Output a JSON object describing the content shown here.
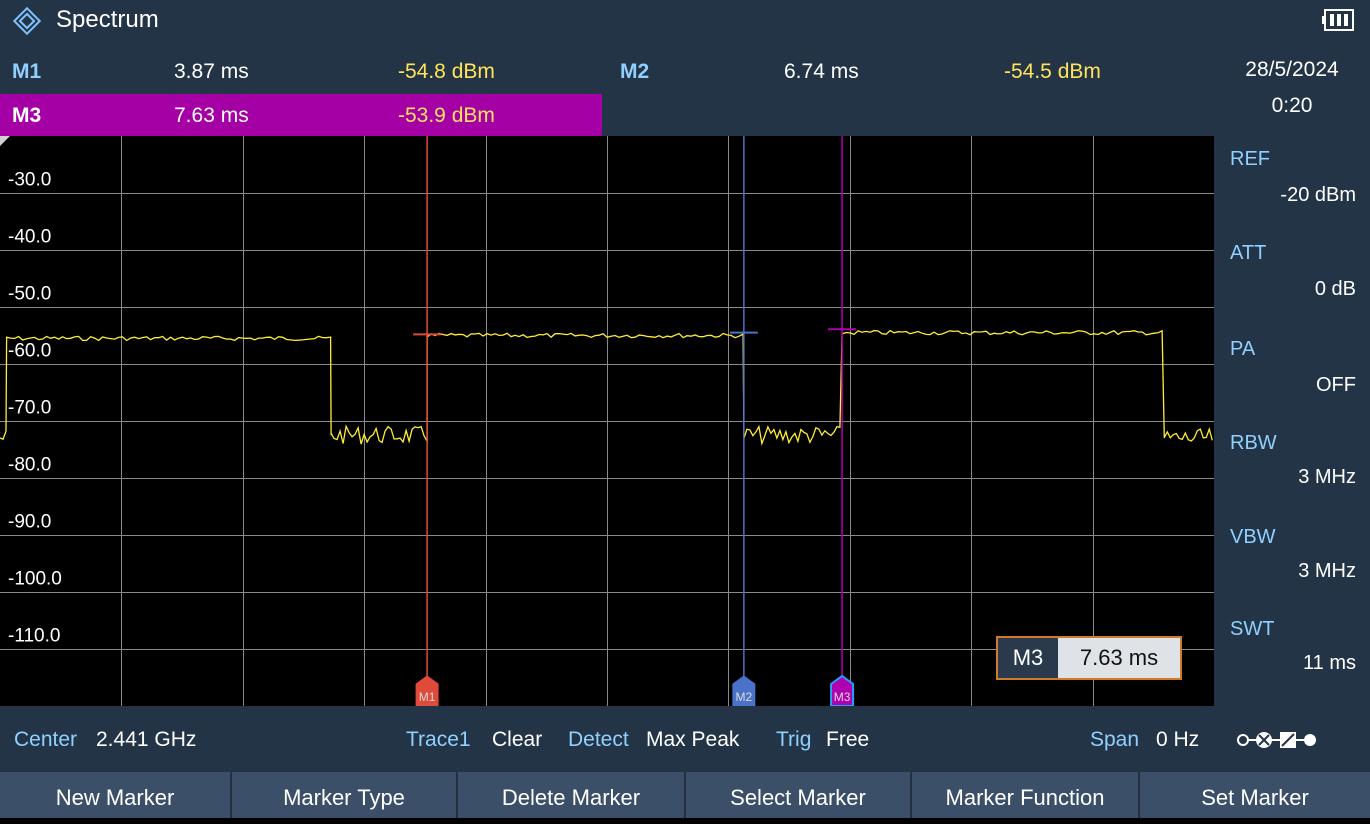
{
  "app": {
    "title": "Spectrum"
  },
  "markers": {
    "m1": {
      "name": "M1",
      "x": "3.87 ms",
      "y": "-54.8 dBm"
    },
    "m2": {
      "name": "M2",
      "x": "6.74 ms",
      "y": "-54.5 dBm"
    },
    "m3": {
      "name": "M3",
      "x": "7.63 ms",
      "y": "-53.9 dBm"
    }
  },
  "datetime": {
    "date": "28/5/2024",
    "time": "0:20"
  },
  "settings": [
    {
      "label": "REF",
      "value": "-20 dBm"
    },
    {
      "label": "ATT",
      "value": "0 dB"
    },
    {
      "label": "PA",
      "value": "OFF"
    },
    {
      "label": "RBW",
      "value": "3 MHz"
    },
    {
      "label": "VBW",
      "value": "3 MHz"
    },
    {
      "label": "SWT",
      "value": "11 ms"
    }
  ],
  "status": {
    "center_label": "Center",
    "center_value": "2.441 GHz",
    "trace_label": "Trace1",
    "trace_value": "Clear",
    "detect_label": "Detect",
    "detect_value": "Max Peak",
    "trig_label": "Trig",
    "trig_value": "Free",
    "span_label": "Span",
    "span_value": "0 Hz"
  },
  "softkeys": [
    "New Marker",
    "Marker Type",
    "Delete Marker",
    "Select Marker",
    "Marker Function",
    "Set Marker"
  ],
  "readout": {
    "name": "M3",
    "value": "7.63 ms"
  },
  "colors": {
    "background": "#000000",
    "panel": "#243447",
    "trace": "#ffee33",
    "m1": "#e04a3a",
    "m2": "#4a72c8",
    "m3": "#b000b0",
    "label_blue": "#8fd0ff"
  },
  "icons": {
    "logo": "rs-diamond-logo",
    "battery": "battery-icon",
    "connection": "connection-status-icon"
  },
  "chart_data": {
    "type": "line",
    "x_unit": "ms",
    "xlim": [
      0,
      11
    ],
    "ylim": [
      -120,
      -20
    ],
    "yticks": [
      "-30.0",
      "-40.0",
      "-50.0",
      "-60.0",
      "-70.0",
      "-80.0",
      "-90.0",
      "-100.0",
      "-110.0"
    ],
    "ytick_values": [
      -30,
      -40,
      -50,
      -60,
      -70,
      -80,
      -90,
      -100,
      -110
    ],
    "grid": true,
    "segments": [
      {
        "x_start": 0.0,
        "x_end": 0.06,
        "level": -73.0
      },
      {
        "x_start": 0.06,
        "x_end": 3.0,
        "level": -55.5
      },
      {
        "x_start": 3.0,
        "x_end": 3.87,
        "level": -72.5
      },
      {
        "x_start": 3.87,
        "x_end": 6.74,
        "level": -55.0
      },
      {
        "x_start": 6.74,
        "x_end": 7.63,
        "level": -72.5
      },
      {
        "x_start": 7.63,
        "x_end": 10.55,
        "level": -54.5
      },
      {
        "x_start": 10.55,
        "x_end": 11.0,
        "level": -73.0
      }
    ],
    "markers": [
      {
        "name": "M1",
        "x": 3.87,
        "y": -54.8
      },
      {
        "name": "M2",
        "x": 6.74,
        "y": -54.5
      },
      {
        "name": "M3",
        "x": 7.63,
        "y": -53.9
      }
    ]
  }
}
